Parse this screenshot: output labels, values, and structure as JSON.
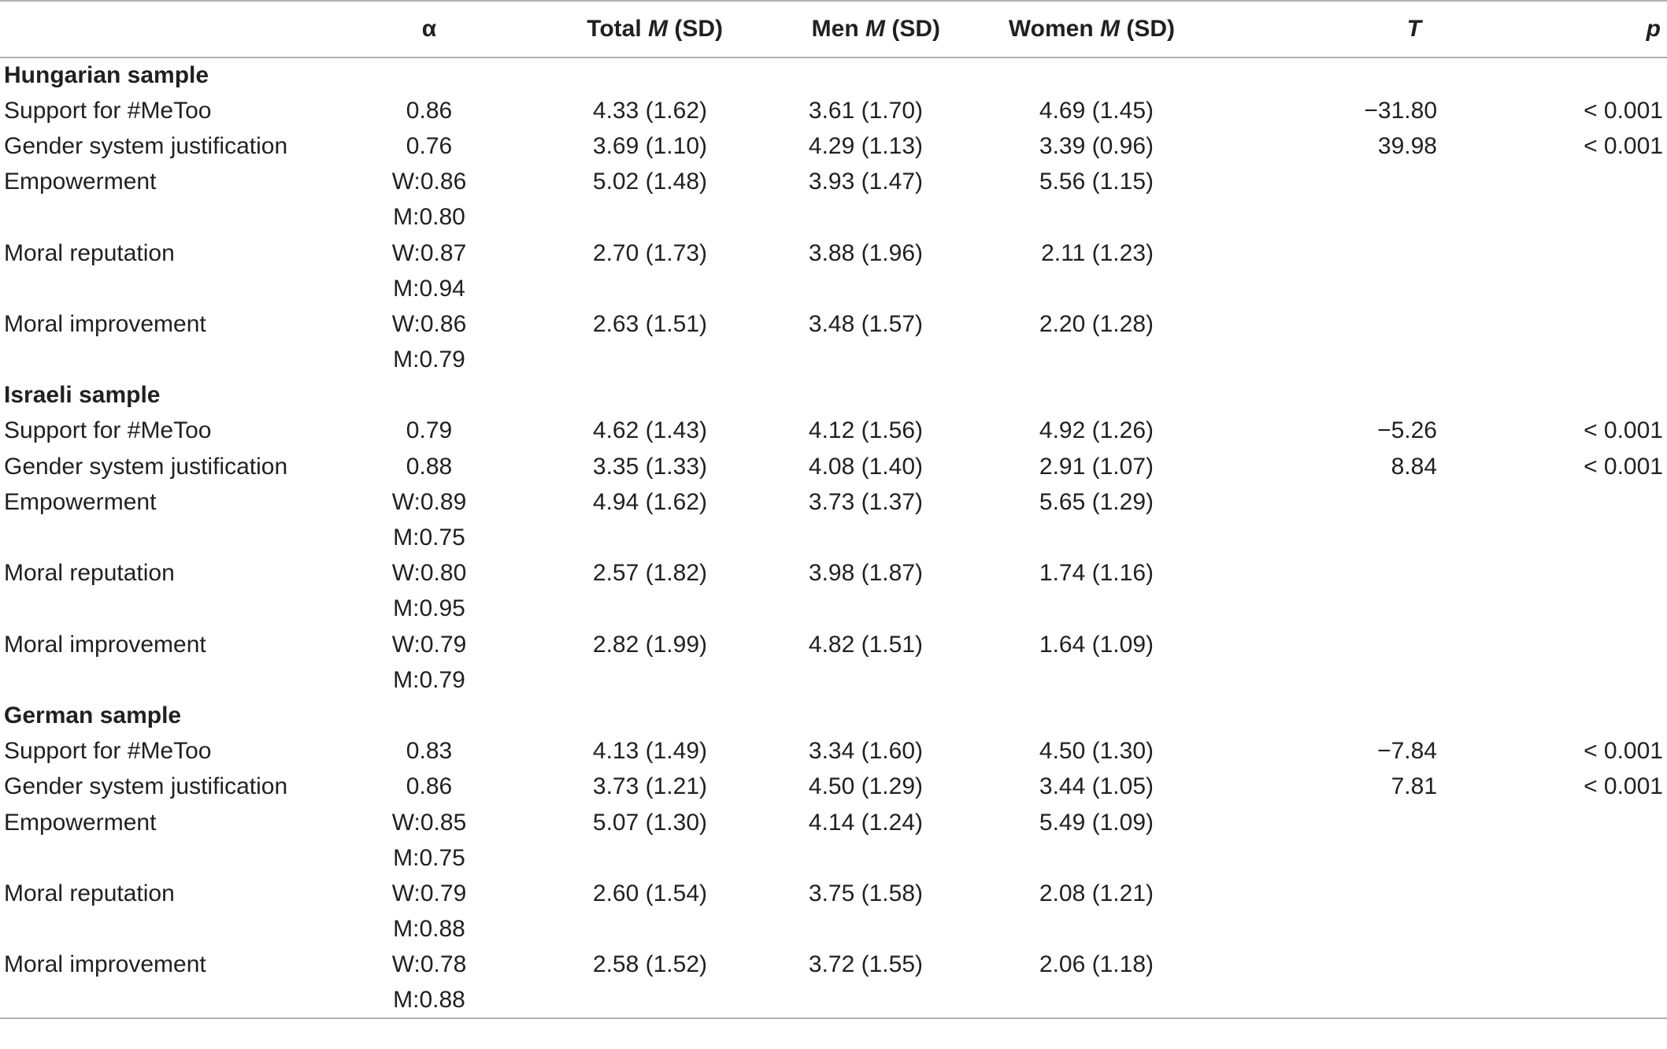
{
  "headers": {
    "variable": "",
    "alpha": "α",
    "total_pre": "Total ",
    "total_m": "M",
    "total_post": " (SD)",
    "men_pre": "Men ",
    "men_m": "M",
    "men_post": " (SD)",
    "women_pre": "Women ",
    "women_m": "M",
    "women_post": " (SD)",
    "t": "T",
    "p": "p"
  },
  "rows": [
    {
      "type": "section",
      "label": "Hungarian sample"
    },
    {
      "type": "data",
      "label": "Support for #MeToo",
      "alpha": "0.86",
      "total": "4.33 (1.62)",
      "men": "3.61 (1.70)",
      "women": "4.69 (1.45)",
      "t": "−31.80",
      "p": "< 0.001"
    },
    {
      "type": "data",
      "label": "Gender system justification",
      "alpha": "0.76",
      "total": "3.69 (1.10)",
      "men": "4.29 (1.13)",
      "women": "3.39 (0.96)",
      "t": "39.98",
      "p": "< 0.001"
    },
    {
      "type": "data",
      "label": "Empowerment",
      "alpha": "W:0.86",
      "total": "5.02 (1.48)",
      "men": "3.93 (1.47)",
      "women": "5.56 (1.15)",
      "t": "",
      "p": ""
    },
    {
      "type": "data",
      "label": "",
      "alpha": "M:0.80",
      "total": "",
      "men": "",
      "women": "",
      "t": "",
      "p": ""
    },
    {
      "type": "data",
      "label": "Moral reputation",
      "alpha": "W:0.87",
      "total": "2.70 (1.73)",
      "men": "3.88 (1.96)",
      "women": "2.11 (1.23)",
      "t": "",
      "p": ""
    },
    {
      "type": "data",
      "label": "",
      "alpha": "M:0.94",
      "total": "",
      "men": "",
      "women": "",
      "t": "",
      "p": ""
    },
    {
      "type": "data",
      "label": "Moral improvement",
      "alpha": "W:0.86",
      "total": "2.63 (1.51)",
      "men": "3.48 (1.57)",
      "women": "2.20 (1.28)",
      "t": "",
      "p": ""
    },
    {
      "type": "data",
      "label": "",
      "alpha": "M:0.79",
      "total": "",
      "men": "",
      "women": "",
      "t": "",
      "p": ""
    },
    {
      "type": "section",
      "label": "Israeli sample"
    },
    {
      "type": "data",
      "label": "Support for #MeToo",
      "alpha": "0.79",
      "total": "4.62 (1.43)",
      "men": "4.12 (1.56)",
      "women": "4.92 (1.26)",
      "t": "−5.26",
      "p": "< 0.001"
    },
    {
      "type": "data",
      "label": "Gender system justification",
      "alpha": "0.88",
      "total": "3.35 (1.33)",
      "men": "4.08 (1.40)",
      "women": "2.91 (1.07)",
      "t": "8.84",
      "p": "< 0.001"
    },
    {
      "type": "data",
      "label": "Empowerment",
      "alpha": "W:0.89",
      "total": "4.94 (1.62)",
      "men": "3.73 (1.37)",
      "women": "5.65 (1.29)",
      "t": "",
      "p": ""
    },
    {
      "type": "data",
      "label": "",
      "alpha": "M:0.75",
      "total": "",
      "men": "",
      "women": "",
      "t": "",
      "p": ""
    },
    {
      "type": "data",
      "label": "Moral reputation",
      "alpha": "W:0.80",
      "total": "2.57 (1.82)",
      "men": "3.98 (1.87)",
      "women": "1.74 (1.16)",
      "t": "",
      "p": ""
    },
    {
      "type": "data",
      "label": "",
      "alpha": "M:0.95",
      "total": "",
      "men": "",
      "women": "",
      "t": "",
      "p": ""
    },
    {
      "type": "data",
      "label": "Moral improvement",
      "alpha": "W:0.79",
      "total": "2.82 (1.99)",
      "men": "4.82 (1.51)",
      "women": "1.64 (1.09)",
      "t": "",
      "p": ""
    },
    {
      "type": "data",
      "label": "",
      "alpha": "M:0.79",
      "total": "",
      "men": "",
      "women": "",
      "t": "",
      "p": ""
    },
    {
      "type": "section",
      "label": "German sample"
    },
    {
      "type": "data",
      "label": "Support for #MeToo",
      "alpha": "0.83",
      "total": "4.13 (1.49)",
      "men": "3.34 (1.60)",
      "women": "4.50 (1.30)",
      "t": "−7.84",
      "p": "< 0.001"
    },
    {
      "type": "data",
      "label": "Gender system justification",
      "alpha": "0.86",
      "total": "3.73 (1.21)",
      "men": "4.50 (1.29)",
      "women": "3.44 (1.05)",
      "t": "7.81",
      "p": "< 0.001"
    },
    {
      "type": "data",
      "label": "Empowerment",
      "alpha": "W:0.85",
      "total": "5.07 (1.30)",
      "men": "4.14 (1.24)",
      "women": "5.49 (1.09)",
      "t": "",
      "p": ""
    },
    {
      "type": "data",
      "label": "",
      "alpha": "M:0.75",
      "total": "",
      "men": "",
      "women": "",
      "t": "",
      "p": ""
    },
    {
      "type": "data",
      "label": "Moral reputation",
      "alpha": "W:0.79",
      "total": "2.60 (1.54)",
      "men": "3.75 (1.58)",
      "women": "2.08 (1.21)",
      "t": "",
      "p": ""
    },
    {
      "type": "data",
      "label": "",
      "alpha": "M:0.88",
      "total": "",
      "men": "",
      "women": "",
      "t": "",
      "p": ""
    },
    {
      "type": "data",
      "label": "Moral improvement",
      "alpha": "W:0.78",
      "total": "2.58 (1.52)",
      "men": "3.72 (1.55)",
      "women": "2.06 (1.18)",
      "t": "",
      "p": ""
    },
    {
      "type": "data",
      "label": "",
      "alpha": "M:0.88",
      "total": "",
      "men": "",
      "women": "",
      "t": "",
      "p": ""
    }
  ]
}
